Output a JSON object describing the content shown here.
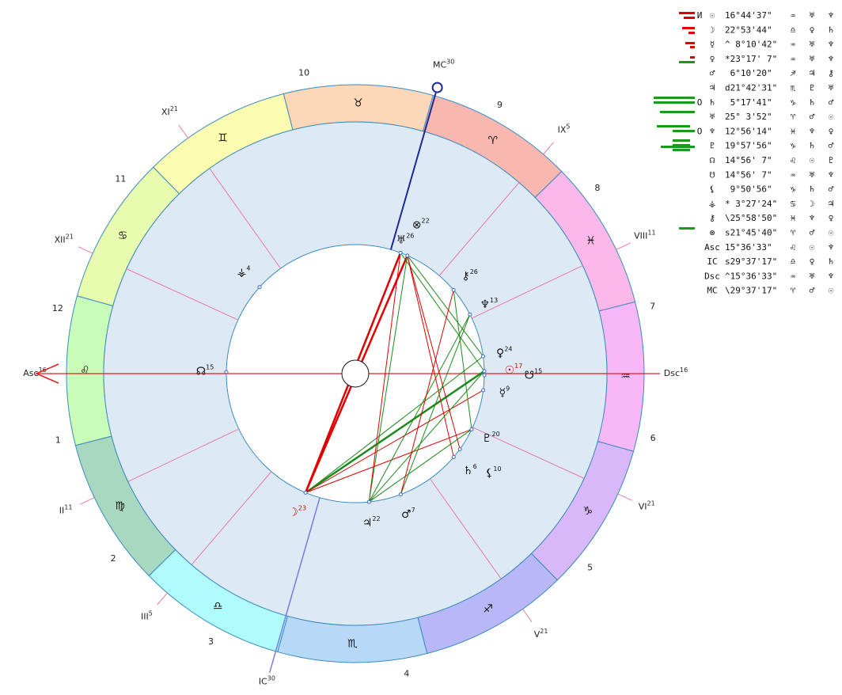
{
  "wheel": {
    "signs": [
      "♈",
      "♉",
      "♊",
      "♋",
      "♌",
      "♍",
      "♎",
      "♏",
      "♐",
      "♑",
      "♒",
      "♓"
    ],
    "sign_colors": [
      "#f8b8b0",
      "#fcd8b8",
      "#fcfcb0",
      "#e8fcb0",
      "#c8fcb8",
      "#a8d8c0",
      "#b0fcfc",
      "#b8d8f8",
      "#b8b8f8",
      "#d8b8f8",
      "#f8b8f8",
      "#fcb8e8"
    ],
    "houses": [
      "1",
      "2",
      "3",
      "4",
      "5",
      "6",
      "7",
      "8",
      "9",
      "10",
      "11",
      "12"
    ],
    "cusps": [
      {
        "label": "Asc",
        "deg": "16",
        "lon": 135.6
      },
      {
        "label": "II",
        "deg": "11",
        "lon": 161
      },
      {
        "label": "III",
        "deg": "5",
        "lon": 185
      },
      {
        "label": "IC",
        "deg": "30",
        "lon": 209.6
      },
      {
        "label": "V",
        "deg": "21",
        "lon": 261
      },
      {
        "label": "VI",
        "deg": "21",
        "lon": 291
      },
      {
        "label": "Dsc",
        "deg": "16",
        "lon": 315.6
      },
      {
        "label": "VIII",
        "deg": "11",
        "lon": 341
      },
      {
        "label": "IX",
        "deg": "5",
        "lon": 5
      },
      {
        "label": "MC",
        "deg": "30",
        "lon": 29.6
      },
      {
        "label": "XI",
        "deg": "21",
        "lon": 81
      },
      {
        "label": "XII",
        "deg": "21",
        "lon": 111
      }
    ],
    "planets": [
      {
        "glyph": "☉",
        "deg": "17",
        "lon": 316.7,
        "color": "#e00000"
      },
      {
        "glyph": "☽",
        "deg": "23",
        "lon": 202.9,
        "color": "#e00000"
      },
      {
        "glyph": "☿",
        "deg": "9",
        "lon": 308.2
      },
      {
        "glyph": "♀",
        "deg": "24",
        "lon": 323.3
      },
      {
        "glyph": "♂",
        "deg": "7",
        "lon": 246.2
      },
      {
        "glyph": "♃",
        "deg": "22",
        "lon": 231.7
      },
      {
        "glyph": "♄",
        "deg": "6",
        "lon": 275.3
      },
      {
        "glyph": "♅",
        "deg": "26",
        "lon": 25.1
      },
      {
        "glyph": "♆",
        "deg": "13",
        "lon": 342.9
      },
      {
        "glyph": "♇",
        "deg": "20",
        "lon": 290.0
      },
      {
        "glyph": "☊",
        "deg": "15",
        "lon": 134.9
      },
      {
        "glyph": "☋",
        "deg": "15",
        "lon": 314.9
      },
      {
        "glyph": "⚸",
        "deg": "10",
        "lon": 279.8
      },
      {
        "glyph": "⚶",
        "deg": "4",
        "lon": 93.5
      },
      {
        "glyph": "⚷",
        "deg": "26",
        "lon": 356.0
      },
      {
        "glyph": "⊗",
        "deg": "22",
        "lon": 21.8
      }
    ]
  },
  "table": {
    "rows": [
      {
        "mark": "И",
        "glyph": "☉",
        "pos": "16°44'37\"",
        "sign": "♒",
        "r1": "♅",
        "r2": "♆"
      },
      {
        "glyph": "☽",
        "pos": "22°53'44\"",
        "sign": "♎",
        "r1": "♀",
        "r2": "♄"
      },
      {
        "glyph": "☿",
        "pos": "^ 8°10'42\"",
        "sign": "♒",
        "r1": "♅",
        "r2": "♆"
      },
      {
        "glyph": "♀",
        "pos": "*23°17' 7\"",
        "sign": "♒",
        "r1": "♅",
        "r2": "♆"
      },
      {
        "glyph": "♂",
        "pos": " 6°10'20\"",
        "sign": "♐",
        "r1": "♃",
        "r2": "⚷"
      },
      {
        "glyph": "♃",
        "pos": "d21°42'31\"",
        "sign": "♏",
        "r1": "♇",
        "r2": "♅"
      },
      {
        "mark": "O",
        "glyph": "♄",
        "pos": " 5°17'41\"",
        "sign": "♑",
        "r1": "♄",
        "r2": "♂"
      },
      {
        "glyph": "♅",
        "pos": "25° 3'52\"",
        "sign": "♈",
        "r1": "♂",
        "r2": "☉"
      },
      {
        "mark": "O",
        "glyph": "♆",
        "pos": "12°56'14\"",
        "sign": "♓",
        "r1": "♆",
        "r2": "♀"
      },
      {
        "glyph": "♇",
        "pos": "19°57'56\"",
        "sign": "♑",
        "r1": "♄",
        "r2": "♂"
      },
      {
        "glyph": "☊",
        "pos": "14°56' 7\"",
        "sign": "♌",
        "r1": "☉",
        "r2": "♇"
      },
      {
        "glyph": "☋",
        "pos": "14°56' 7\"",
        "sign": "♒",
        "r1": "♅",
        "r2": "♆"
      },
      {
        "glyph": "⚸",
        "pos": " 9°50'56\"",
        "sign": "♑",
        "r1": "♄",
        "r2": "♂"
      },
      {
        "glyph": "⚶",
        "pos": "* 3°27'24\"",
        "sign": "♋",
        "r1": "☽",
        "r2": "♃"
      },
      {
        "glyph": "⚷",
        "pos": "\\25°58'50\"",
        "sign": "♓",
        "r1": "♆",
        "r2": "♀"
      },
      {
        "glyph": "⊗",
        "pos": "s21°45'40\"",
        "sign": "♈",
        "r1": "♂",
        "r2": "☉"
      },
      {
        "glyph": "Asc",
        "pos": "15°36'33\"",
        "sign": "♌",
        "r1": "☉",
        "r2": "♆"
      },
      {
        "glyph": "IC",
        "pos": "s29°37'17\"",
        "sign": "♎",
        "r1": "♀",
        "r2": "♄"
      },
      {
        "glyph": "Dsc",
        "pos": "^15°36'33\"",
        "sign": "♒",
        "r1": "♅",
        "r2": "♆"
      },
      {
        "glyph": "MC",
        "pos": "\\29°37'17\"",
        "sign": "♈",
        "r1": "♂",
        "r2": "☉"
      }
    ]
  }
}
